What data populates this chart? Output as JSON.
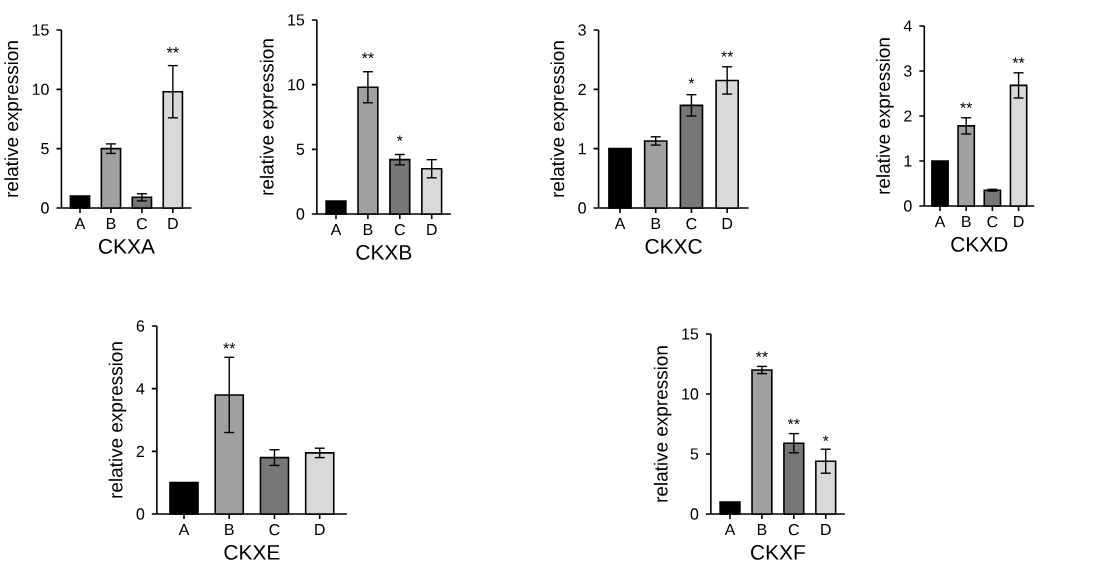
{
  "chart_data": [
    {
      "type": "bar",
      "xlabel": "CKXA",
      "ylabel": "relative expression",
      "categories": [
        "A",
        "B",
        "C",
        "D"
      ],
      "values": [
        1,
        5,
        0.9,
        9.8
      ],
      "errors": [
        null,
        0.4,
        0.3,
        2.2
      ],
      "colors": [
        "#000000",
        "#a0a0a0",
        "#777777",
        "#d9d9d9"
      ],
      "ylim": [
        0,
        15
      ],
      "yticks": [
        0,
        5,
        10,
        15
      ],
      "annotations": [
        {
          "text": "**",
          "x": "D",
          "y": 12.6
        }
      ]
    },
    {
      "type": "bar",
      "xlabel": "CKXB",
      "ylabel": "relative expression",
      "categories": [
        "A",
        "B",
        "C",
        "D"
      ],
      "values": [
        1,
        9.8,
        4.2,
        3.5
      ],
      "errors": [
        null,
        1.2,
        0.4,
        0.7
      ],
      "colors": [
        "#000000",
        "#a0a0a0",
        "#777777",
        "#d9d9d9"
      ],
      "ylim": [
        0,
        15
      ],
      "yticks": [
        0,
        5,
        10,
        15
      ],
      "annotations": [
        {
          "text": "**",
          "x": "B",
          "y": 11.6
        },
        {
          "text": "*",
          "x": "C",
          "y": 5.2
        }
      ]
    },
    {
      "type": "bar",
      "xlabel": "CKXC",
      "ylabel": "relative expression",
      "categories": [
        "A",
        "B",
        "C",
        "D"
      ],
      "values": [
        1,
        1.13,
        1.73,
        2.15
      ],
      "errors": [
        null,
        0.07,
        0.18,
        0.23
      ],
      "colors": [
        "#000000",
        "#a0a0a0",
        "#777777",
        "#d9d9d9"
      ],
      "ylim": [
        0,
        3
      ],
      "yticks": [
        0,
        1,
        2,
        3
      ],
      "annotations": [
        {
          "text": "*",
          "x": "C",
          "y": 2.0
        },
        {
          "text": "**",
          "x": "D",
          "y": 2.45
        }
      ]
    },
    {
      "type": "bar",
      "xlabel": "CKXD",
      "ylabel": "relative expression",
      "categories": [
        "A",
        "B",
        "C",
        "D"
      ],
      "values": [
        1,
        1.78,
        0.35,
        2.68
      ],
      "errors": [
        null,
        0.18,
        0.02,
        0.28
      ],
      "colors": [
        "#000000",
        "#a0a0a0",
        "#777777",
        "#d9d9d9"
      ],
      "ylim": [
        0,
        4
      ],
      "yticks": [
        0,
        1,
        2,
        3,
        4
      ],
      "annotations": [
        {
          "text": "**",
          "x": "B",
          "y": 2.05
        },
        {
          "text": "**",
          "x": "D",
          "y": 3.05
        }
      ]
    },
    {
      "type": "bar",
      "xlabel": "CKXE",
      "ylabel": "relative expression",
      "categories": [
        "A",
        "B",
        "C",
        "D"
      ],
      "values": [
        1,
        3.8,
        1.8,
        1.95
      ],
      "errors": [
        null,
        1.2,
        0.25,
        0.15
      ],
      "colors": [
        "#000000",
        "#a0a0a0",
        "#777777",
        "#d9d9d9"
      ],
      "ylim": [
        0,
        6
      ],
      "yticks": [
        0,
        2,
        4,
        6
      ],
      "annotations": [
        {
          "text": "**",
          "x": "B",
          "y": 5.1
        }
      ]
    },
    {
      "type": "bar",
      "xlabel": "CKXF",
      "ylabel": "relative expression",
      "categories": [
        "A",
        "B",
        "C",
        "D"
      ],
      "values": [
        1,
        12,
        5.9,
        4.4
      ],
      "errors": [
        null,
        0.3,
        0.8,
        1.0
      ],
      "colors": [
        "#000000",
        "#a0a0a0",
        "#777777",
        "#d9d9d9"
      ],
      "ylim": [
        0,
        15
      ],
      "yticks": [
        0,
        5,
        10,
        15
      ],
      "annotations": [
        {
          "text": "**",
          "x": "B",
          "y": 12.6
        },
        {
          "text": "**",
          "x": "C",
          "y": 7.0
        },
        {
          "text": "*",
          "x": "D",
          "y": 5.6
        }
      ]
    }
  ]
}
